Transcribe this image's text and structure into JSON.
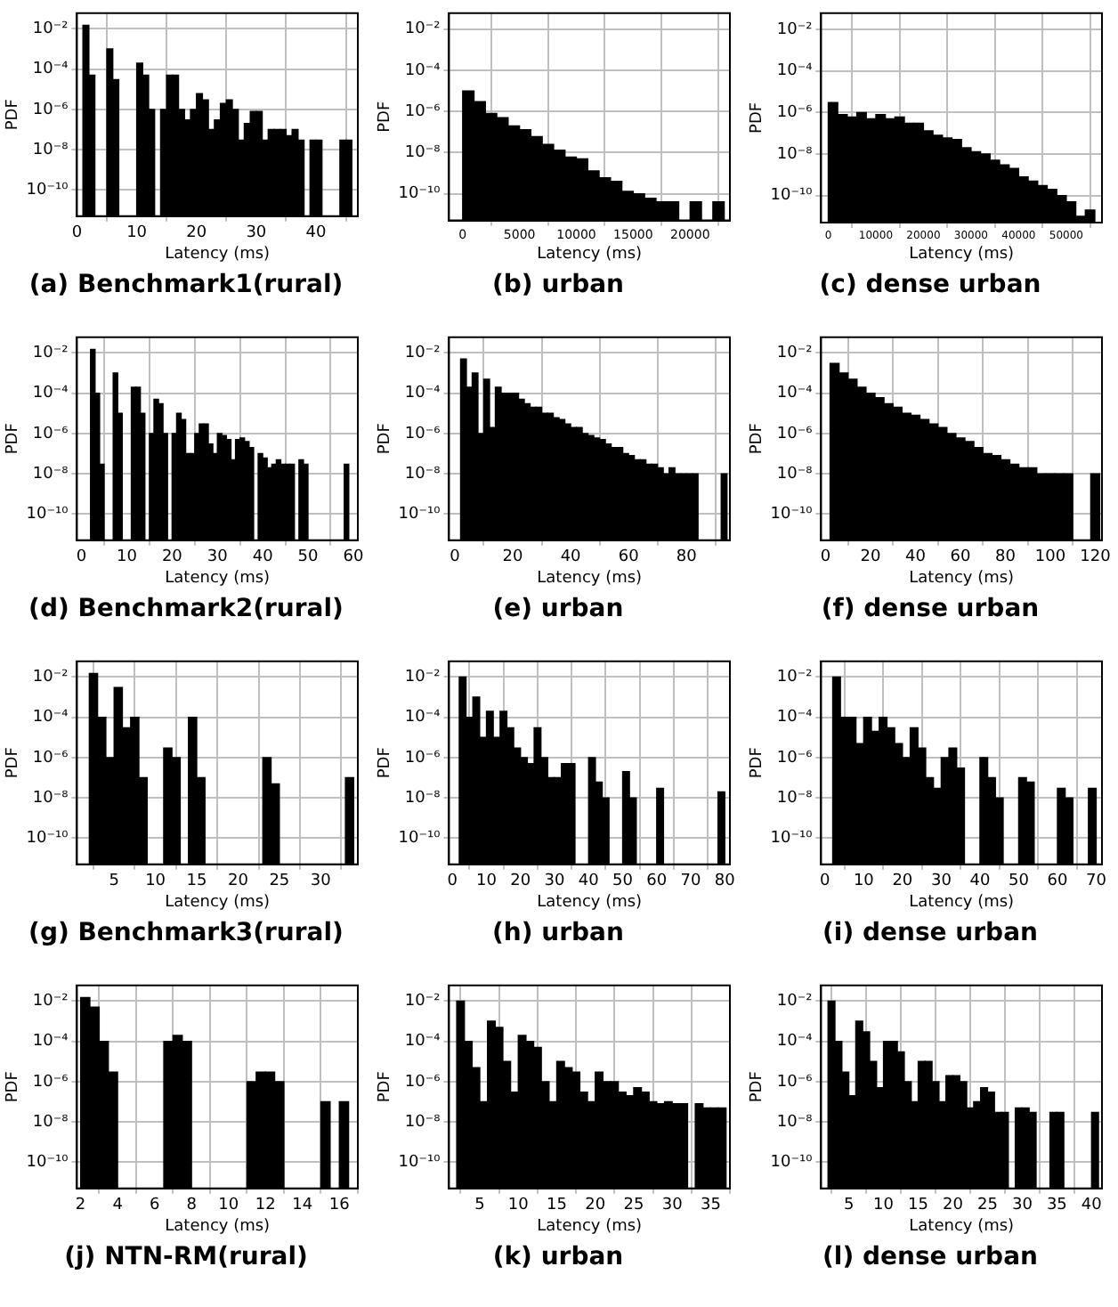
{
  "chart_data": [
    {
      "type": "histogram",
      "title": "(a) Benchmark1(rural)",
      "xlabel": "Latency (ms)",
      "ylabel": "PDF",
      "color": "#000000",
      "log": "y",
      "grid": true,
      "xlim": [
        0,
        47
      ],
      "xticks": [
        0,
        10,
        20,
        30,
        40
      ],
      "ylim": [
        5e-12,
        0.06
      ],
      "yticks": [
        {
          "value": 0.01,
          "label": "10⁻²"
        },
        {
          "value": 0.0001,
          "label": "10⁻⁴"
        },
        {
          "value": 1e-06,
          "label": "10⁻⁶"
        },
        {
          "value": 1e-08,
          "label": "10⁻⁸"
        },
        {
          "value": 1e-10,
          "label": "10⁻¹⁰"
        }
      ],
      "bins": [
        1,
        2,
        3,
        4,
        5,
        6,
        7,
        8,
        9,
        10,
        11,
        12,
        13,
        14,
        15,
        16,
        17,
        18,
        19,
        20,
        21,
        22,
        23,
        24,
        25,
        26,
        27,
        28,
        29,
        30,
        31,
        32,
        33,
        34,
        35,
        36,
        37,
        38,
        39,
        40,
        41,
        42,
        43,
        44,
        45,
        46
      ],
      "values": [
        0.015,
        5e-05,
        null,
        null,
        0.001,
        3e-05,
        null,
        null,
        null,
        0.0002,
        5e-05,
        1e-06,
        null,
        1e-06,
        5e-05,
        5e-05,
        1e-06,
        3e-07,
        1e-06,
        6e-06,
        3e-06,
        1e-07,
        3e-07,
        2e-06,
        3e-06,
        1e-06,
        3e-08,
        2e-07,
        8e-07,
        8e-07,
        3e-08,
        1e-07,
        1e-07,
        1e-07,
        5e-08,
        1e-07,
        3e-08,
        null,
        3e-08,
        3e-08,
        null,
        null,
        null,
        3e-08,
        3e-08
      ]
    },
    {
      "type": "histogram",
      "title": "(b) urban",
      "xlabel": "Latency (ms)",
      "ylabel": "PDF",
      "color": "#000000",
      "log": "y",
      "grid": true,
      "xlim": [
        -1200,
        23500
      ],
      "xticks": [
        0,
        5000,
        10000,
        15000,
        20000
      ],
      "ylim": [
        5e-12,
        0.06
      ],
      "yticks": [
        {
          "value": 0.01,
          "label": "10⁻²"
        },
        {
          "value": 0.0001,
          "label": "10⁻⁴"
        },
        {
          "value": 1e-06,
          "label": "10⁻⁶"
        },
        {
          "value": 1e-08,
          "label": "10⁻⁸"
        },
        {
          "value": 1e-10,
          "label": "10⁻¹⁰"
        }
      ],
      "bins": [
        0,
        1000,
        2000,
        3000,
        4000,
        5000,
        6000,
        7000,
        8000,
        9000,
        10000,
        11000,
        12000,
        13000,
        14000,
        15000,
        16000,
        17000,
        18000,
        19000,
        20000,
        21000,
        22000,
        23000
      ],
      "values": [
        1e-05,
        3e-06,
        8e-07,
        5e-07,
        2e-07,
        1.3e-07,
        6e-08,
        2.5e-08,
        1.3e-08,
        6e-09,
        5e-09,
        1.3e-09,
        6e-10,
        4e-10,
        1.3e-10,
        1e-10,
        6e-11,
        4e-11,
        4e-11,
        null,
        4e-11,
        null,
        4e-11
      ]
    },
    {
      "type": "histogram",
      "title": "(c) dense urban",
      "xlabel": "Latency (ms)",
      "ylabel": "PDF",
      "color": "#000000",
      "log": "y",
      "grid": true,
      "xlim": [
        -1500,
        57500
      ],
      "xticks": [
        0,
        10000,
        20000,
        30000,
        40000,
        50000
      ],
      "ylim": [
        5e-12,
        0.06
      ],
      "yticks": [
        {
          "value": 0.01,
          "label": "10⁻²"
        },
        {
          "value": 0.0001,
          "label": "10⁻⁴"
        },
        {
          "value": 1e-06,
          "label": "10⁻⁶"
        },
        {
          "value": 1e-08,
          "label": "10⁻⁸"
        },
        {
          "value": 1e-10,
          "label": "10⁻¹⁰"
        }
      ],
      "bins": [
        0,
        2000,
        4000,
        6000,
        8000,
        10000,
        12000,
        14000,
        16000,
        18000,
        20000,
        22000,
        24000,
        26000,
        28000,
        30000,
        32000,
        34000,
        36000,
        38000,
        40000,
        42000,
        44000,
        46000,
        48000,
        50000,
        52000,
        54000,
        56000
      ],
      "values": [
        3e-06,
        8e-07,
        6e-07,
        1e-06,
        5e-07,
        8e-07,
        5e-07,
        6e-07,
        3e-07,
        3e-07,
        1.3e-07,
        8e-08,
        6e-08,
        5e-08,
        2e-08,
        1.3e-08,
        1e-08,
        5e-09,
        3e-09,
        2e-09,
        8e-10,
        5e-10,
        3e-10,
        2e-10,
        1e-10,
        5e-11,
        1e-11,
        2e-11
      ]
    },
    {
      "type": "histogram",
      "title": "(d) Benchmark2(rural)",
      "xlabel": "Latency (ms)",
      "ylabel": "PDF",
      "color": "#000000",
      "log": "y",
      "grid": true,
      "xlim": [
        -1,
        61
      ],
      "xticks": [
        0,
        10,
        20,
        30,
        40,
        50,
        60
      ],
      "ylim": [
        5e-12,
        0.06
      ],
      "yticks": [
        {
          "value": 0.01,
          "label": "10⁻²"
        },
        {
          "value": 0.0001,
          "label": "10⁻⁴"
        },
        {
          "value": 1e-06,
          "label": "10⁻⁶"
        },
        {
          "value": 1e-08,
          "label": "10⁻⁸"
        },
        {
          "value": 1e-10,
          "label": "10⁻¹⁰"
        }
      ],
      "bins": [
        2,
        3,
        4,
        5,
        6,
        7,
        8,
        9,
        10,
        11,
        12,
        13,
        14,
        15,
        16,
        17,
        18,
        19,
        20,
        21,
        22,
        23,
        24,
        25,
        26,
        27,
        28,
        29,
        30,
        31,
        32,
        33,
        34,
        35,
        36,
        37,
        38,
        39,
        40,
        41,
        42,
        43,
        44,
        45,
        46,
        47,
        48,
        49,
        50,
        51,
        52,
        53,
        54,
        55,
        56,
        57,
        58,
        59
      ],
      "values": [
        0.015,
        0.0001,
        3e-08,
        null,
        null,
        0.001,
        1e-05,
        null,
        null,
        0.0002,
        0.0002,
        1e-05,
        null,
        1e-06,
        5e-05,
        3e-05,
        1e-06,
        null,
        1e-06,
        1e-05,
        5e-06,
        1e-07,
        1e-07,
        1e-06,
        3e-06,
        3e-06,
        3e-07,
        1e-07,
        1e-06,
        8e-07,
        5e-07,
        5e-08,
        5e-07,
        6e-07,
        4e-07,
        2e-07,
        null,
        1e-07,
        6e-08,
        2e-08,
        3e-08,
        5e-08,
        3e-08,
        3e-08,
        3e-08,
        null,
        5e-08,
        3e-08,
        null,
        null,
        null,
        null,
        null,
        null,
        null,
        null,
        3e-08
      ]
    },
    {
      "type": "histogram",
      "title": "(e) urban",
      "xlabel": "Latency (ms)",
      "ylabel": "PDF",
      "color": "#000000",
      "log": "y",
      "grid": true,
      "xlim": [
        -2,
        95
      ],
      "xticks": [
        0,
        20,
        40,
        60,
        80
      ],
      "ylim": [
        5e-12,
        0.06
      ],
      "yticks": [
        {
          "value": 0.01,
          "label": "10⁻²"
        },
        {
          "value": 0.0001,
          "label": "10⁻⁴"
        },
        {
          "value": 1e-06,
          "label": "10⁻⁶"
        },
        {
          "value": 1e-08,
          "label": "10⁻⁸"
        },
        {
          "value": 1e-10,
          "label": "10⁻¹⁰"
        }
      ],
      "bins": [
        2,
        4,
        6,
        8,
        10,
        12,
        14,
        16,
        18,
        20,
        22,
        24,
        26,
        28,
        30,
        32,
        34,
        36,
        38,
        40,
        42,
        44,
        46,
        48,
        50,
        52,
        54,
        56,
        58,
        60,
        62,
        64,
        66,
        68,
        70,
        72,
        74,
        76,
        78,
        80,
        82,
        84,
        86,
        88,
        90,
        92,
        94
      ],
      "values": [
        0.005,
        0.0002,
        0.001,
        1e-06,
        0.0005,
        2e-06,
        0.0002,
        0.0001,
        0.0001,
        0.0001,
        5e-05,
        3e-05,
        2e-05,
        2e-05,
        1e-05,
        1e-05,
        6e-06,
        5e-06,
        3e-06,
        2e-06,
        2e-06,
        1e-06,
        8e-07,
        6e-07,
        5e-07,
        3e-07,
        2e-07,
        2e-07,
        1e-07,
        8e-08,
        5e-08,
        5e-08,
        3e-08,
        3e-08,
        2e-08,
        1e-08,
        2e-08,
        1e-08,
        1e-08,
        1e-08,
        1e-08,
        null,
        null,
        null,
        null,
        1e-08
      ]
    },
    {
      "type": "histogram",
      "title": "(f) dense urban",
      "xlabel": "Latency (ms)",
      "ylabel": "PDF",
      "color": "#000000",
      "log": "y",
      "grid": true,
      "xlim": [
        -2,
        123
      ],
      "xticks": [
        0,
        20,
        40,
        60,
        80,
        100,
        120
      ],
      "ylim": [
        5e-12,
        0.06
      ],
      "yticks": [
        {
          "value": 0.01,
          "label": "10⁻²"
        },
        {
          "value": 0.0001,
          "label": "10⁻⁴"
        },
        {
          "value": 1e-06,
          "label": "10⁻⁶"
        },
        {
          "value": 1e-08,
          "label": "10⁻⁸"
        },
        {
          "value": 1e-10,
          "label": "10⁻¹⁰"
        }
      ],
      "bins": [
        2,
        6,
        10,
        14,
        18,
        22,
        26,
        30,
        34,
        38,
        42,
        46,
        50,
        54,
        58,
        62,
        66,
        70,
        74,
        78,
        82,
        86,
        90,
        94,
        98,
        102,
        106,
        110,
        114,
        118,
        122
      ],
      "values": [
        0.003,
        0.001,
        0.0005,
        0.0002,
        0.0001,
        6e-05,
        3e-05,
        2e-05,
        1e-05,
        8e-06,
        5e-06,
        3e-06,
        2e-06,
        1e-06,
        6e-07,
        4e-07,
        2e-07,
        1e-07,
        8e-08,
        5e-08,
        3e-08,
        2e-08,
        2e-08,
        1e-08,
        1e-08,
        1e-08,
        1e-08,
        null,
        null,
        1e-08
      ]
    },
    {
      "type": "histogram",
      "title": "(g) Benchmark3(rural)",
      "xlabel": "Latency (ms)",
      "ylabel": "PDF",
      "color": "#000000",
      "log": "y",
      "grid": true,
      "xlim": [
        0.5,
        34.5
      ],
      "xticks": [
        5,
        10,
        15,
        20,
        25,
        30
      ],
      "ylim": [
        5e-12,
        0.06
      ],
      "yticks": [
        {
          "value": 0.01,
          "label": "10⁻²"
        },
        {
          "value": 0.0001,
          "label": "10⁻⁴"
        },
        {
          "value": 1e-06,
          "label": "10⁻⁶"
        },
        {
          "value": 1e-08,
          "label": "10⁻⁸"
        },
        {
          "value": 1e-10,
          "label": "10⁻¹⁰"
        }
      ],
      "bins": [
        2,
        3,
        4,
        5,
        6,
        7,
        8,
        9,
        10,
        11,
        12,
        13,
        14,
        15,
        16,
        17,
        18,
        19,
        20,
        21,
        22,
        23,
        24,
        25,
        26,
        27,
        28,
        29,
        30,
        31,
        32,
        33,
        34
      ],
      "values": [
        0.015,
        0.0001,
        1e-06,
        0.003,
        3e-05,
        0.0001,
        1e-07,
        null,
        null,
        3e-06,
        1e-06,
        null,
        0.0001,
        1e-07,
        null,
        null,
        null,
        null,
        null,
        null,
        null,
        1e-06,
        5e-08,
        null,
        null,
        null,
        null,
        null,
        null,
        null,
        null,
        1e-07
      ]
    },
    {
      "type": "histogram",
      "title": "(h) urban",
      "xlabel": "Latency (ms)",
      "ylabel": "PDF",
      "color": "#000000",
      "log": "y",
      "grid": true,
      "xlim": [
        -1,
        81.5
      ],
      "xticks": [
        0,
        10,
        20,
        30,
        40,
        50,
        60,
        70,
        80
      ],
      "ylim": [
        5e-12,
        0.06
      ],
      "yticks": [
        {
          "value": 0.01,
          "label": "10⁻²"
        },
        {
          "value": 0.0001,
          "label": "10⁻⁴"
        },
        {
          "value": 1e-06,
          "label": "10⁻⁶"
        },
        {
          "value": 1e-08,
          "label": "10⁻⁸"
        },
        {
          "value": 1e-10,
          "label": "10⁻¹⁰"
        }
      ],
      "bins": [
        2,
        4,
        6,
        8,
        10,
        12,
        14,
        16,
        18,
        20,
        22,
        24,
        26,
        28,
        30,
        32,
        34,
        36,
        38,
        40,
        42,
        44,
        46,
        48,
        50,
        52,
        54,
        56,
        58,
        60,
        62,
        64,
        66,
        68,
        70,
        72,
        74,
        76,
        78,
        80
      ],
      "values": [
        0.01,
        0.0001,
        0.001,
        1e-05,
        0.0002,
        1e-05,
        0.0002,
        3e-05,
        3e-06,
        1e-06,
        5e-07,
        3e-05,
        1e-06,
        1e-07,
        1e-07,
        5e-07,
        5e-07,
        null,
        null,
        1e-06,
        6e-08,
        1e-08,
        null,
        null,
        2e-07,
        1e-08,
        null,
        null,
        null,
        3e-08,
        null,
        null,
        null,
        null,
        null,
        null,
        null,
        null,
        2e-08
      ]
    },
    {
      "type": "histogram",
      "title": "(i) dense urban",
      "xlabel": "Latency (ms)",
      "ylabel": "PDF",
      "color": "#000000",
      "log": "y",
      "grid": true,
      "xlim": [
        -1,
        71.5
      ],
      "xticks": [
        0,
        10,
        20,
        30,
        40,
        50,
        60,
        70
      ],
      "ylim": [
        5e-12,
        0.06
      ],
      "yticks": [
        {
          "value": 0.01,
          "label": "10⁻²"
        },
        {
          "value": 0.0001,
          "label": "10⁻⁴"
        },
        {
          "value": 1e-06,
          "label": "10⁻⁶"
        },
        {
          "value": 1e-08,
          "label": "10⁻⁸"
        },
        {
          "value": 1e-10,
          "label": "10⁻¹⁰"
        }
      ],
      "bins": [
        2,
        4,
        6,
        8,
        10,
        12,
        14,
        16,
        18,
        20,
        22,
        24,
        26,
        28,
        30,
        32,
        34,
        36,
        38,
        40,
        42,
        44,
        46,
        48,
        50,
        52,
        54,
        56,
        58,
        60,
        62,
        64,
        66,
        68,
        70
      ],
      "values": [
        0.01,
        0.0001,
        0.0001,
        5e-06,
        0.0001,
        2e-05,
        0.0001,
        3e-05,
        5e-06,
        1e-06,
        3e-05,
        3e-06,
        1e-07,
        3e-08,
        1e-06,
        3e-06,
        3e-07,
        null,
        null,
        1e-06,
        1e-07,
        1e-08,
        null,
        null,
        1e-07,
        6e-08,
        null,
        null,
        null,
        3e-08,
        1e-08,
        null,
        null,
        3e-08
      ]
    },
    {
      "type": "histogram",
      "title": "(j) NTN-RM(rural)",
      "xlabel": "Latency (ms)",
      "ylabel": "PDF",
      "color": "#000000",
      "log": "y",
      "grid": true,
      "xlim": [
        1.8,
        17
      ],
      "xticks": [
        2,
        4,
        6,
        8,
        10,
        12,
        14,
        16
      ],
      "ylim": [
        5e-12,
        0.06
      ],
      "yticks": [
        {
          "value": 0.01,
          "label": "10⁻²"
        },
        {
          "value": 0.0001,
          "label": "10⁻⁴"
        },
        {
          "value": 1e-06,
          "label": "10⁻⁶"
        },
        {
          "value": 1e-08,
          "label": "10⁻⁸"
        },
        {
          "value": 1e-10,
          "label": "10⁻¹⁰"
        }
      ],
      "bins": [
        2,
        2.5,
        3,
        3.5,
        4,
        4.5,
        5,
        5.5,
        6,
        6.5,
        7,
        7.5,
        8,
        8.5,
        9,
        9.5,
        10,
        10.5,
        11,
        11.5,
        12,
        12.5,
        13,
        13.5,
        14,
        14.5,
        15,
        15.5,
        16,
        16.5
      ],
      "values": [
        0.015,
        0.005,
        0.0001,
        3e-06,
        null,
        null,
        null,
        null,
        null,
        0.0001,
        0.0002,
        0.0001,
        null,
        null,
        null,
        null,
        null,
        null,
        1e-06,
        3e-06,
        3e-06,
        1e-06,
        null,
        null,
        null,
        null,
        1e-07,
        null,
        1e-07
      ]
    },
    {
      "type": "histogram",
      "title": "(k) urban",
      "xlabel": "Latency (ms)",
      "ylabel": "PDF",
      "color": "#000000",
      "log": "y",
      "grid": true,
      "xlim": [
        1,
        37.5
      ],
      "xticks": [
        5,
        10,
        15,
        20,
        25,
        30,
        35
      ],
      "ylim": [
        5e-12,
        0.06
      ],
      "yticks": [
        {
          "value": 0.01,
          "label": "10⁻²"
        },
        {
          "value": 0.0001,
          "label": "10⁻⁴"
        },
        {
          "value": 1e-06,
          "label": "10⁻⁶"
        },
        {
          "value": 1e-08,
          "label": "10⁻⁸"
        },
        {
          "value": 1e-10,
          "label": "10⁻¹⁰"
        }
      ],
      "bins": [
        2,
        3,
        4,
        5,
        6,
        7,
        8,
        9,
        10,
        11,
        12,
        13,
        14,
        15,
        16,
        17,
        18,
        19,
        20,
        21,
        22,
        23,
        24,
        25,
        26,
        27,
        28,
        29,
        30,
        31,
        32,
        33,
        34,
        35,
        36,
        37
      ],
      "values": [
        0.01,
        0.0001,
        5e-06,
        1e-07,
        0.001,
        0.0005,
        1e-05,
        3e-07,
        0.0002,
        0.0001,
        5e-05,
        1e-06,
        1e-07,
        1e-05,
        5e-06,
        3e-06,
        3e-07,
        1e-07,
        3e-06,
        1e-06,
        1e-06,
        3e-07,
        2e-07,
        5e-07,
        3e-07,
        1e-07,
        8e-08,
        1e-07,
        8e-08,
        8e-08,
        null,
        8e-08,
        5e-08,
        5e-08,
        5e-08
      ]
    },
    {
      "type": "histogram",
      "title": "(l) dense urban",
      "xlabel": "Latency (ms)",
      "ylabel": "PDF",
      "color": "#000000",
      "log": "y",
      "grid": true,
      "xlim": [
        1,
        41.5
      ],
      "xticks": [
        5,
        10,
        15,
        20,
        25,
        30,
        35,
        40
      ],
      "ylim": [
        5e-12,
        0.06
      ],
      "yticks": [
        {
          "value": 0.01,
          "label": "10⁻²"
        },
        {
          "value": 0.0001,
          "label": "10⁻⁴"
        },
        {
          "value": 1e-06,
          "label": "10⁻⁶"
        },
        {
          "value": 1e-08,
          "label": "10⁻⁸"
        },
        {
          "value": 1e-10,
          "label": "10⁻¹⁰"
        }
      ],
      "bins": [
        2,
        3,
        4,
        5,
        6,
        7,
        8,
        9,
        10,
        11,
        12,
        13,
        14,
        15,
        16,
        17,
        18,
        19,
        20,
        21,
        22,
        23,
        24,
        25,
        26,
        27,
        28,
        29,
        30,
        31,
        32,
        33,
        34,
        35,
        36,
        37,
        38,
        39,
        40,
        41
      ],
      "values": [
        0.01,
        0.0001,
        3e-06,
        2e-07,
        0.001,
        0.0003,
        1e-05,
        5e-07,
        0.0001,
        0.0001,
        3e-05,
        1e-06,
        1e-07,
        1e-05,
        1e-05,
        1e-06,
        1e-07,
        2e-06,
        2e-06,
        1e-06,
        5e-08,
        1e-07,
        5e-07,
        3e-07,
        3e-08,
        3e-08,
        null,
        5e-08,
        5e-08,
        3e-08,
        null,
        null,
        3e-08,
        3e-08,
        null,
        null,
        null,
        null,
        3e-08
      ]
    }
  ]
}
